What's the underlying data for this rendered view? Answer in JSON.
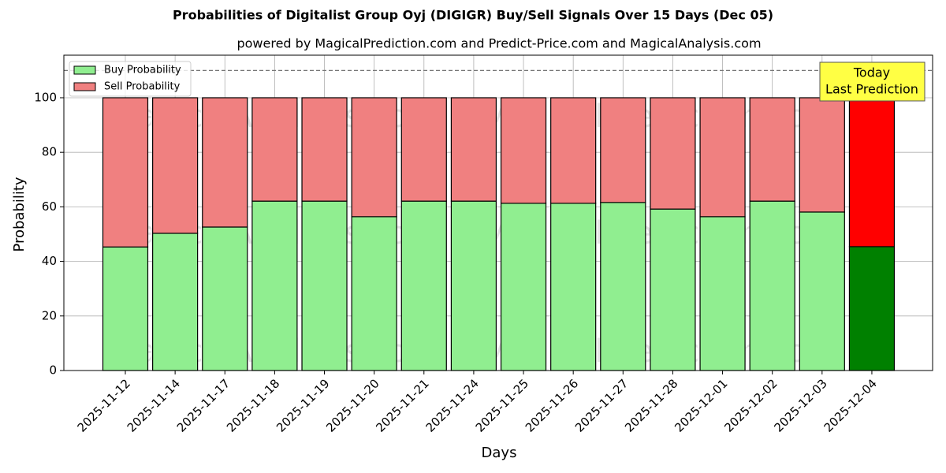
{
  "chart_data": {
    "type": "stacked_bar",
    "title": "Probabilities of Digitalist Group Oyj (DIGIGR) Buy/Sell Signals Over 15 Days (Dec 05)",
    "subtitle": "powered by MagicalPrediction.com and Predict-Price.com and MagicalAnalysis.com",
    "x_label": "Days",
    "y_label": "Probability",
    "categories": [
      "2025-11-12",
      "2025-11-14",
      "2025-11-17",
      "2025-11-18",
      "2025-11-19",
      "2025-11-20",
      "2025-11-21",
      "2025-11-24",
      "2025-11-25",
      "2025-11-26",
      "2025-11-27",
      "2025-11-28",
      "2025-12-01",
      "2025-12-02",
      "2025-12-03",
      "2025-12-04"
    ],
    "series": [
      {
        "name": "Buy Probability",
        "color": "#90ee90",
        "colors": [
          "#90ee90",
          "#90ee90",
          "#90ee90",
          "#90ee90",
          "#90ee90",
          "#90ee90",
          "#90ee90",
          "#90ee90",
          "#90ee90",
          "#90ee90",
          "#90ee90",
          "#90ee90",
          "#90ee90",
          "#90ee90",
          "#90ee90",
          "#008000"
        ],
        "values": [
          45.3,
          50.3,
          52.6,
          62.1,
          62.1,
          56.4,
          62.1,
          62.1,
          61.3,
          61.3,
          61.6,
          59.2,
          56.4,
          62.1,
          58.1,
          45.4
        ]
      },
      {
        "name": "Sell Probability",
        "color": "#f08080",
        "colors": [
          "#f08080",
          "#f08080",
          "#f08080",
          "#f08080",
          "#f08080",
          "#f08080",
          "#f08080",
          "#f08080",
          "#f08080",
          "#f08080",
          "#f08080",
          "#f08080",
          "#f08080",
          "#f08080",
          "#f08080",
          "#ff0000"
        ],
        "values": [
          54.7,
          49.7,
          47.4,
          37.9,
          37.9,
          43.6,
          37.9,
          37.9,
          38.7,
          38.7,
          38.4,
          40.8,
          43.6,
          37.9,
          41.9,
          54.6
        ]
      }
    ],
    "ylim": [
      0,
      115.6
    ],
    "yticks": [
      0,
      20,
      40,
      60,
      80,
      100
    ],
    "grid": true,
    "hline": 110,
    "annotation": [
      "Today",
      "Last Prediction"
    ],
    "legend": "upper left",
    "watermarks": [
      "MagicalAnalysis.com",
      "MagicalPrediction.com"
    ]
  }
}
